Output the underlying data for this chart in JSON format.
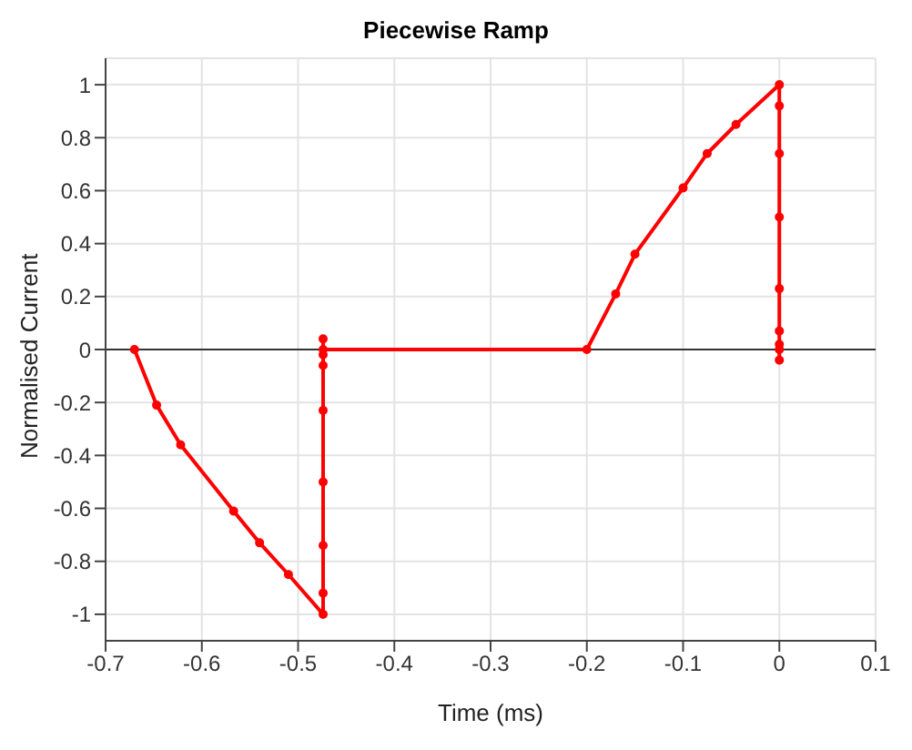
{
  "chart_data": {
    "type": "line",
    "title": "Piecewise Ramp",
    "xlabel": "Time (ms)",
    "ylabel": "Normalised Current",
    "x": [
      -0.67,
      -0.647,
      -0.622,
      -0.567,
      -0.54,
      -0.51,
      -0.474,
      -0.474,
      -0.474,
      -0.474,
      -0.474,
      -0.474,
      -0.474,
      -0.474,
      -0.474,
      -0.2,
      -0.17,
      -0.15,
      -0.1,
      -0.075,
      -0.045,
      0,
      0,
      0,
      0,
      0,
      0,
      0,
      0,
      0
    ],
    "series": [
      {
        "color": "#ff0000",
        "values": [
          0,
          -0.21,
          -0.36,
          -0.61,
          -0.73,
          -0.85,
          -1,
          -0.92,
          -0.74,
          -0.5,
          -0.23,
          -0.06,
          -0.02,
          0.04,
          0,
          0,
          0.21,
          0.36,
          0.61,
          0.74,
          0.85,
          1,
          0.92,
          0.74,
          0.5,
          0.23,
          0.07,
          0.02,
          -0.04,
          0
        ]
      }
    ],
    "xlim": [
      -0.7,
      0.1
    ],
    "xticks": [
      -0.7,
      -0.6,
      -0.5,
      -0.4,
      -0.3,
      -0.2,
      -0.1,
      0,
      0.1
    ],
    "ylim": [
      -1.1,
      1.1
    ],
    "yticks": [
      -1,
      -0.8,
      -0.6,
      -0.4,
      -0.2,
      0,
      0.2,
      0.4,
      0.6,
      0.8,
      1
    ],
    "ref_lines": [
      {
        "axis": "y",
        "value": 0,
        "color": "#333333"
      }
    ],
    "grid": true,
    "marker": "circle",
    "line_style": "solid"
  }
}
